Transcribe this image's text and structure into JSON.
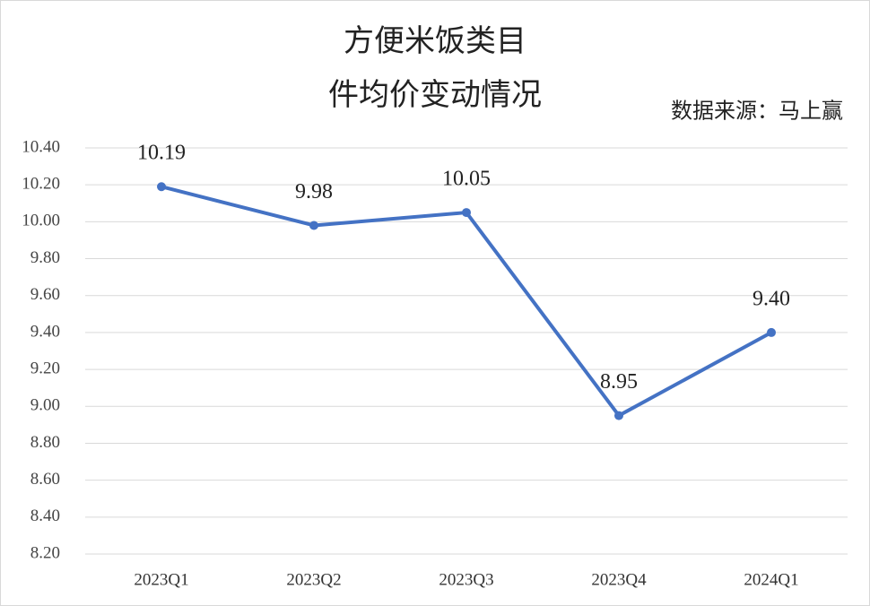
{
  "chart_data": {
    "type": "line",
    "title": [
      "方便米饭类目",
      "件均价变动情况"
    ],
    "annotation": "数据来源：马上赢",
    "categories": [
      "2023Q1",
      "2023Q2",
      "2023Q3",
      "2023Q4",
      "2024Q1"
    ],
    "series": [
      {
        "name": "件均价",
        "color": "#4472c4",
        "values": [
          10.19,
          9.98,
          10.05,
          8.95,
          9.4
        ],
        "value_labels": [
          "10.19",
          "9.98",
          "10.05",
          "8.95",
          "9.40"
        ]
      }
    ],
    "ylim": [
      8.2,
      10.4
    ],
    "yticks": [
      {
        "value": 8.2,
        "label": "8.20"
      },
      {
        "value": 8.4,
        "label": "8.40"
      },
      {
        "value": 8.6,
        "label": "8.60"
      },
      {
        "value": 8.8,
        "label": "8.80"
      },
      {
        "value": 9.0,
        "label": "9.00"
      },
      {
        "value": 9.2,
        "label": "9.20"
      },
      {
        "value": 9.4,
        "label": "9.40"
      },
      {
        "value": 9.6,
        "label": "9.60"
      },
      {
        "value": 9.8,
        "label": "9.80"
      },
      {
        "value": 10.0,
        "label": "10.00"
      },
      {
        "value": 10.2,
        "label": "10.20"
      },
      {
        "value": 10.4,
        "label": "10.40"
      }
    ],
    "grid": true
  }
}
